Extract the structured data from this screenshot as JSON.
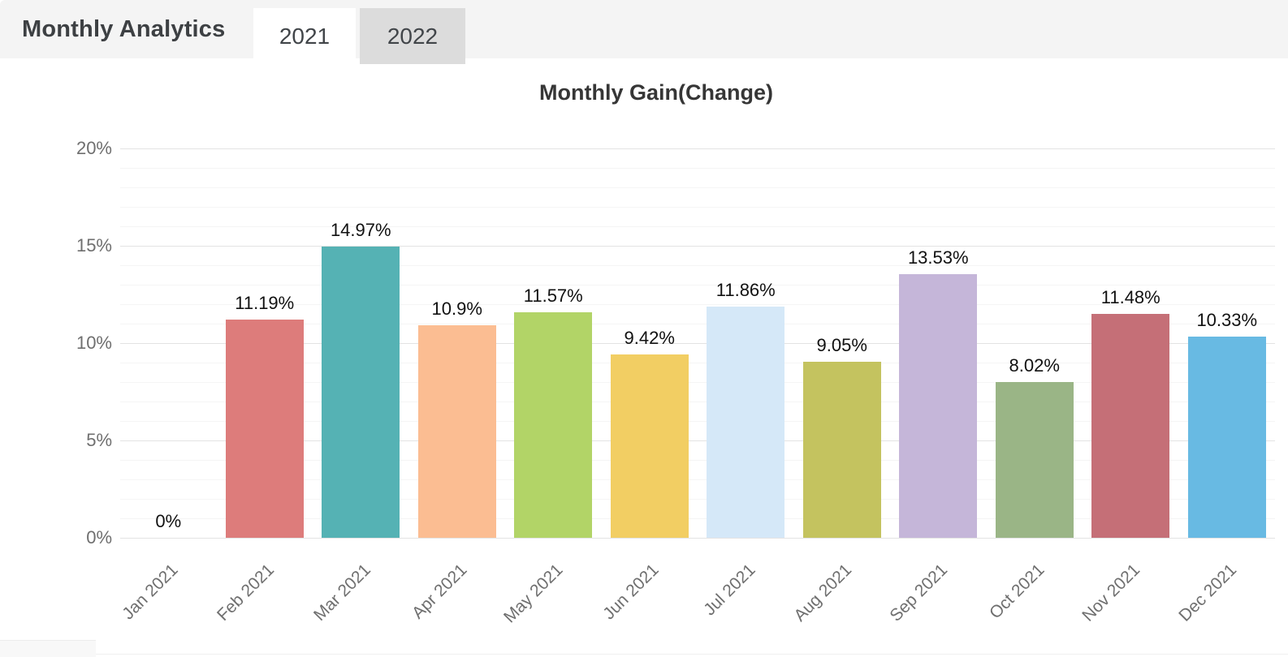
{
  "header": {
    "title": "Monthly Analytics",
    "tabs": [
      {
        "label": "2021",
        "active": true
      },
      {
        "label": "2022",
        "active": false
      }
    ]
  },
  "chart_data": {
    "type": "bar",
    "title": "Monthly Gain(Change)",
    "categories": [
      "Jan 2021",
      "Feb 2021",
      "Mar 2021",
      "Apr 2021",
      "May 2021",
      "Jun 2021",
      "Jul 2021",
      "Aug 2021",
      "Sep 2021",
      "Oct 2021",
      "Nov 2021",
      "Dec 2021"
    ],
    "values": [
      0,
      11.19,
      14.97,
      10.9,
      11.57,
      9.42,
      11.86,
      9.05,
      13.53,
      8.02,
      11.48,
      10.33
    ],
    "value_labels": [
      "0%",
      "11.19%",
      "14.97%",
      "10.9%",
      "11.57%",
      "9.42%",
      "11.86%",
      "9.05%",
      "13.53%",
      "8.02%",
      "11.48%",
      "10.33%"
    ],
    "bar_colors": [
      "#cccccc",
      "#dd7c7b",
      "#55b2b4",
      "#fbbd92",
      "#b2d467",
      "#f2ce63",
      "#d5e8f8",
      "#c4c35f",
      "#c5b6d9",
      "#9ab586",
      "#c56f77",
      "#68bae3"
    ],
    "xlabel": "",
    "ylabel": "",
    "ylim": [
      0,
      20
    ],
    "y_major_tick_labels": [
      "0%",
      "5%",
      "10%",
      "15%",
      "20%"
    ],
    "y_major_step": 5,
    "y_minor_step": 1,
    "grid": true,
    "legend_position": "none"
  },
  "colors": {
    "header_background": "#f4f4f4",
    "active_tab_background": "#ffffff",
    "inactive_tab_background": "#dcdcdc",
    "major_gridline": "#e3e3e3",
    "minor_gridline": "#f5f5f5",
    "axis_label_text": "#6f6f6f",
    "data_label_text": "#111111",
    "title_text": "#363636"
  }
}
